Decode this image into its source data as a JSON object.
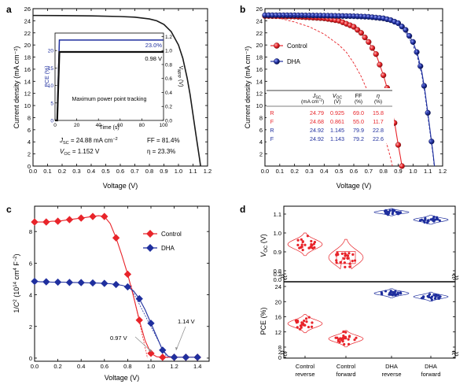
{
  "chart_data": [
    {
      "panel": "a",
      "type": "line",
      "xlabel": "Voltage (V)",
      "ylabel": "Current density (mA cm⁻²)",
      "xlim": [
        0.0,
        1.2
      ],
      "ylim": [
        0,
        26
      ],
      "x_ticks": [
        "0.0",
        "0.1",
        "0.2",
        "0.3",
        "0.4",
        "0.5",
        "0.6",
        "0.7",
        "0.8",
        "0.9",
        "1.0",
        "1.1",
        "1.2"
      ],
      "y_ticks": [
        "0",
        "2",
        "4",
        "6",
        "8",
        "10",
        "12",
        "14",
        "16",
        "18",
        "20",
        "22",
        "24",
        "26"
      ],
      "series": [
        {
          "color": "#1a1a1a",
          "x": [
            0.0,
            0.2,
            0.4,
            0.6,
            0.7,
            0.8,
            0.85,
            0.9,
            0.95,
            1.0,
            1.03,
            1.06,
            1.08,
            1.1,
            1.12,
            1.135,
            1.145,
            1.152
          ],
          "y": [
            24.88,
            24.85,
            24.8,
            24.7,
            24.6,
            24.3,
            24.0,
            23.4,
            22.2,
            20.0,
            17.8,
            14.5,
            11.8,
            8.5,
            5.2,
            2.8,
            1.2,
            0.0
          ]
        }
      ],
      "annotations": [
        "J",
        "SC",
        " = 24.88 mA cm",
        "−2",
        "V",
        "OC",
        " = 1.152 V",
        "FF = 81.4%",
        "η = 23.3%"
      ],
      "inset": {
        "type": "line",
        "xlabel": "Time (s)",
        "ylabel": "PCE (%)",
        "ylabel_right": [
          "V",
          "MPP",
          " (V)"
        ],
        "xlim": [
          0,
          100
        ],
        "ylim": [
          0,
          25
        ],
        "ylim_right": [
          0,
          1.25
        ],
        "x_ticks": [
          "0",
          "20",
          "40",
          "60",
          "80",
          "100"
        ],
        "y_ticks": [
          "0",
          "5",
          "10",
          "15",
          "20"
        ],
        "y_ticks_right": [
          "0.0",
          "0.2",
          "0.4",
          "0.6",
          "0.8",
          "1.0",
          "1.2"
        ],
        "labels": [
          "23.0%",
          "0.98 V",
          "Maximum power point tracking"
        ],
        "series": [
          {
            "color": "#1f2f9e",
            "x": [
              0,
              2,
              3,
              4,
              100
            ],
            "y": [
              0,
              0,
              12,
              23.0,
              23.0
            ]
          },
          {
            "color": "#111111",
            "x": [
              0,
              2,
              3,
              4,
              100
            ],
            "y": [
              0,
              0,
              0.5,
              0.98,
              0.98
            ],
            "axis": "right"
          }
        ]
      }
    },
    {
      "panel": "b",
      "type": "line",
      "xlabel": "Voltage (V)",
      "ylabel": "Current density (mA cm⁻²)",
      "xlim": [
        0.0,
        1.2
      ],
      "ylim": [
        0,
        26
      ],
      "x_ticks": [
        "0.0",
        "0.1",
        "0.2",
        "0.3",
        "0.4",
        "0.5",
        "0.6",
        "0.7",
        "0.8",
        "0.9",
        "1.0",
        "1.1",
        "1.2"
      ],
      "y_ticks": [
        "2",
        "4",
        "6",
        "8",
        "10",
        "12",
        "14",
        "16",
        "18",
        "20",
        "22",
        "24",
        "26"
      ],
      "legend": [
        "Control",
        "DHA"
      ],
      "series": [
        {
          "name": "Control",
          "color": "#e8242a",
          "style": "solid-markers",
          "x": [
            0.0,
            0.2,
            0.4,
            0.5,
            0.6,
            0.65,
            0.7,
            0.75,
            0.8,
            0.83,
            0.86,
            0.88,
            0.9,
            0.915,
            0.925
          ],
          "y": [
            24.79,
            24.7,
            24.4,
            24.0,
            23.0,
            22.0,
            20.5,
            18.5,
            15.0,
            12.5,
            9.0,
            6.5,
            3.5,
            1.5,
            0.0
          ]
        },
        {
          "name": "Control",
          "color": "#e8242a",
          "style": "dashed",
          "x": [
            0.0,
            0.1,
            0.2,
            0.3,
            0.4,
            0.5,
            0.55,
            0.6,
            0.65,
            0.7,
            0.75,
            0.8,
            0.83,
            0.85,
            0.861
          ],
          "y": [
            24.68,
            24.4,
            23.8,
            23.0,
            21.8,
            20.0,
            18.8,
            17.0,
            14.8,
            12.0,
            9.0,
            5.5,
            3.0,
            1.2,
            0.0
          ]
        },
        {
          "name": "DHA",
          "color": "#1f2f9e",
          "style": "solid-markers",
          "x": [
            0.0,
            0.2,
            0.4,
            0.6,
            0.7,
            0.8,
            0.85,
            0.9,
            0.95,
            1.0,
            1.03,
            1.06,
            1.08,
            1.1,
            1.12,
            1.135,
            1.145
          ],
          "y": [
            24.92,
            24.9,
            24.85,
            24.75,
            24.65,
            24.4,
            24.1,
            23.6,
            22.5,
            20.5,
            18.5,
            15.5,
            12.5,
            8.8,
            5.0,
            2.2,
            0.0
          ]
        },
        {
          "name": "DHA",
          "color": "#1f2f9e",
          "style": "dashed",
          "x": [
            0.0,
            0.2,
            0.4,
            0.6,
            0.7,
            0.8,
            0.85,
            0.9,
            0.95,
            1.0,
            1.03,
            1.06,
            1.08,
            1.1,
            1.12,
            1.135,
            1.143
          ],
          "y": [
            24.92,
            24.88,
            24.8,
            24.7,
            24.55,
            24.25,
            23.9,
            23.3,
            22.1,
            20.0,
            18.0,
            15.0,
            12.0,
            8.3,
            4.6,
            1.8,
            0.0
          ]
        }
      ],
      "table": {
        "headers": [
          [
            "J",
            "SC",
            "(mA cm",
            "−2",
            ")"
          ],
          [
            "V",
            "OC",
            "(V)"
          ],
          [
            "FF",
            "(%)"
          ],
          [
            "η",
            "(%)"
          ]
        ],
        "rows": [
          {
            "scan": "R",
            "jsc": "24.79",
            "voc": "0.925",
            "ff": "69.0",
            "pce": "15.8",
            "color": "#e8242a"
          },
          {
            "scan": "F",
            "jsc": "24.68",
            "voc": "0.861",
            "ff": "55.0",
            "pce": "11.7",
            "color": "#e8242a"
          },
          {
            "scan": "R",
            "jsc": "24.92",
            "voc": "1.145",
            "ff": "79.9",
            "pce": "22.8",
            "color": "#1f2f9e"
          },
          {
            "scan": "F",
            "jsc": "24.92",
            "voc": "1.143",
            "ff": "79.2",
            "pce": "22.6",
            "color": "#1f2f9e"
          }
        ]
      }
    },
    {
      "panel": "c",
      "type": "line",
      "xlabel": "Voltage (V)",
      "ylabel": [
        "1/",
        "C",
        "2",
        " (10",
        "14",
        " cm",
        "4",
        " F",
        "−2",
        ")"
      ],
      "xlim": [
        0.0,
        1.5
      ],
      "ylim": [
        -0.2,
        9.6
      ],
      "x_ticks": [
        "0.0",
        "0.2",
        "0.4",
        "0.6",
        "0.8",
        "1.0",
        "1.2",
        "1.4"
      ],
      "y_ticks": [
        "0",
        "2",
        "4",
        "6",
        "8"
      ],
      "legend": [
        "Control",
        "DHA"
      ],
      "series": [
        {
          "name": "Control",
          "color": "#e8242a",
          "x": [
            0.0,
            0.05,
            0.1,
            0.15,
            0.2,
            0.25,
            0.3,
            0.35,
            0.4,
            0.45,
            0.5,
            0.55,
            0.6,
            0.65,
            0.7,
            0.75,
            0.8,
            0.85,
            0.9,
            0.95,
            1.0,
            1.05,
            1.1,
            1.15,
            1.2,
            1.25,
            1.3,
            1.35,
            1.4
          ],
          "y": [
            8.6,
            8.6,
            8.6,
            8.65,
            8.65,
            8.7,
            8.75,
            8.8,
            8.85,
            8.9,
            8.95,
            9.0,
            8.95,
            8.5,
            7.6,
            6.5,
            5.3,
            3.9,
            2.4,
            1.1,
            0.3,
            0.08,
            0.05,
            0.05,
            0.05,
            0.05,
            0.05,
            0.05,
            0.05
          ]
        },
        {
          "name": "DHA",
          "color": "#1f2f9e",
          "x": [
            0.0,
            0.05,
            0.1,
            0.15,
            0.2,
            0.25,
            0.3,
            0.35,
            0.4,
            0.45,
            0.5,
            0.55,
            0.6,
            0.65,
            0.7,
            0.75,
            0.8,
            0.85,
            0.9,
            0.95,
            1.0,
            1.05,
            1.1,
            1.15,
            1.2,
            1.25,
            1.3,
            1.35,
            1.4
          ],
          "y": [
            4.85,
            4.82,
            4.82,
            4.8,
            4.8,
            4.8,
            4.78,
            4.78,
            4.77,
            4.76,
            4.75,
            4.74,
            4.72,
            4.7,
            4.65,
            4.6,
            4.5,
            4.25,
            3.75,
            3.05,
            2.2,
            1.35,
            0.5,
            0.1,
            0.05,
            0.05,
            0.05,
            0.05,
            0.05
          ]
        }
      ],
      "annotations": [
        "0.97 V",
        "1.14 V"
      ]
    },
    {
      "panel": "d",
      "type": "scatter",
      "categories": [
        [
          "Control",
          "reverse"
        ],
        [
          "Control",
          "forward"
        ],
        [
          "DHA",
          "reverse"
        ],
        [
          "DHA",
          "forward"
        ]
      ],
      "top": {
        "ylabel": [
          "V",
          "OC",
          " (V)"
        ],
        "ylim": [
          0,
          1.15
        ],
        "y_ticks": [
          "0.0",
          "0.2",
          "0.8",
          "0.9",
          "1.0",
          "1.1"
        ],
        "axis_break": true,
        "series": [
          {
            "color": "#e8242a",
            "mean": 0.94,
            "spread": 0.025,
            "n": 24
          },
          {
            "color": "#e8242a",
            "mean": 0.87,
            "spread": 0.04,
            "n": 24
          },
          {
            "color": "#1f2f9e",
            "mean": 1.11,
            "spread": 0.008,
            "n": 24
          },
          {
            "color": "#1f2f9e",
            "mean": 1.07,
            "spread": 0.01,
            "n": 24
          }
        ]
      },
      "bottom": {
        "ylabel": "PCE (%)",
        "ylim": [
          0,
          25
        ],
        "y_ticks": [
          "0",
          "2",
          "8",
          "12",
          "16",
          "20",
          "24"
        ],
        "axis_break": true,
        "series": [
          {
            "color": "#e8242a",
            "mean": 14.2,
            "spread": 1.0,
            "n": 24
          },
          {
            "color": "#e8242a",
            "mean": 10.2,
            "spread": 0.9,
            "n": 24
          },
          {
            "color": "#1f2f9e",
            "mean": 22.2,
            "spread": 0.5,
            "n": 24
          },
          {
            "color": "#1f2f9e",
            "mean": 21.3,
            "spread": 0.5,
            "n": 24
          }
        ]
      }
    }
  ]
}
